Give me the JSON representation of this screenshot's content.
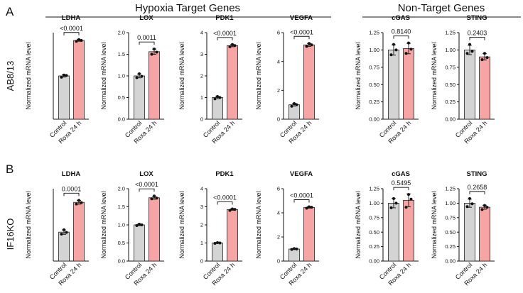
{
  "figure": {
    "panel_letters": [
      "A",
      "B"
    ],
    "group_titles": [
      "Hypoxia Target Genes",
      "Non-Target Genes"
    ],
    "row_labels": [
      "AB8/13",
      "IF16KO"
    ]
  },
  "colors": {
    "control": "#d4d4d4",
    "treatment": "#f7a4a4",
    "edge": "#222222",
    "dot": "#111111"
  },
  "chart_data": [
    {
      "type": "bar",
      "panel": "A",
      "title": "LDHA",
      "categories": [
        "Control",
        "Roxa 24 h"
      ],
      "values": [
        1.0,
        1.82
      ],
      "points": [
        [
          0.97,
          1.02,
          1.01
        ],
        [
          1.8,
          1.84,
          1.82
        ]
      ],
      "ylabel": "Normalized mRNA level",
      "ylim": [
        0,
        2.0
      ],
      "ticks": [],
      "pvalue": "<0.0001"
    },
    {
      "type": "bar",
      "panel": "A",
      "title": "LOX",
      "categories": [
        "Control",
        "Roxa 24 h"
      ],
      "values": [
        1.0,
        1.56
      ],
      "points": [
        [
          0.96,
          1.05,
          0.99
        ],
        [
          1.5,
          1.62,
          1.55
        ]
      ],
      "ylabel": "Normalized mRNA level",
      "ylim": [
        0,
        2.0
      ],
      "ticks": [
        "0.0",
        "0.5",
        "1.0",
        "1.5",
        "2.0"
      ],
      "pvalue": "0.0011"
    },
    {
      "type": "bar",
      "panel": "A",
      "title": "PDK1",
      "categories": [
        "Control",
        "Roxa 24 h"
      ],
      "values": [
        1.0,
        3.4
      ],
      "points": [
        [
          0.94,
          1.05,
          1.0
        ],
        [
          3.35,
          3.45,
          3.4
        ]
      ],
      "ylabel": "Normalized mRNA level",
      "ylim": [
        0,
        4
      ],
      "ticks": [
        "0",
        "1",
        "2",
        "3",
        "4"
      ],
      "pvalue": "<0.0001"
    },
    {
      "type": "bar",
      "panel": "A",
      "title": "VEGFA",
      "categories": [
        "Control",
        "Roxa 24 h"
      ],
      "values": [
        1.0,
        5.15
      ],
      "points": [
        [
          0.9,
          1.08,
          1.0
        ],
        [
          5.05,
          5.25,
          5.15
        ]
      ],
      "ylabel": "Normalized mRNA level",
      "ylim": [
        0,
        6
      ],
      "ticks": [
        "0",
        "2",
        "4",
        "6"
      ],
      "pvalue": "<0.0001"
    },
    {
      "type": "bar",
      "panel": "A",
      "title": "cGAS",
      "categories": [
        "Control",
        "Roxa 24 h"
      ],
      "values": [
        1.0,
        1.02
      ],
      "points": [
        [
          0.93,
          1.08,
          1.0
        ],
        [
          0.95,
          1.1,
          1.01
        ]
      ],
      "ylabel": "Normalized mRNA level",
      "ylim": [
        0,
        1.25
      ],
      "ticks": [
        "0.00",
        "0.25",
        "0.50",
        "0.75",
        "1.00",
        "1.25"
      ],
      "pvalue": "0.8140"
    },
    {
      "type": "bar",
      "panel": "A",
      "title": "STING",
      "categories": [
        "Control",
        "Roxa 24 h"
      ],
      "values": [
        1.0,
        0.9
      ],
      "points": [
        [
          0.95,
          1.08,
          0.98
        ],
        [
          0.86,
          0.95,
          0.89
        ]
      ],
      "ylabel": "Normalized mRNA level",
      "ylim": [
        0,
        1.25
      ],
      "ticks": [
        "0.00",
        "0.25",
        "0.50",
        "0.75",
        "1.00",
        "1.25"
      ],
      "pvalue": "0.2403"
    },
    {
      "type": "bar",
      "panel": "B",
      "title": "LDHA",
      "categories": [
        "Control",
        "Roxa 24 h"
      ],
      "values": [
        1.0,
        2.03
      ],
      "points": [
        [
          0.93,
          1.08,
          0.99
        ],
        [
          1.97,
          2.1,
          2.02
        ]
      ],
      "ylabel": "Normalized mRNA level",
      "ylim": [
        0,
        2.5
      ],
      "ticks": [],
      "pvalue": "0.0001"
    },
    {
      "type": "bar",
      "panel": "B",
      "title": "LOX",
      "categories": [
        "Control",
        "Roxa 24 h"
      ],
      "values": [
        1.0,
        1.75
      ],
      "points": [
        [
          0.98,
          1.02,
          1.0
        ],
        [
          1.72,
          1.8,
          1.74
        ]
      ],
      "ylabel": "Normalized mRNA level",
      "ylim": [
        0,
        2.0
      ],
      "ticks": [
        "0.0",
        "0.5",
        "1.0",
        "1.5",
        "2.0"
      ],
      "pvalue": "<0.0001"
    },
    {
      "type": "bar",
      "panel": "B",
      "title": "PDK1",
      "categories": [
        "Control",
        "Roxa 24 h"
      ],
      "values": [
        1.0,
        2.85
      ],
      "points": [
        [
          0.98,
          1.02,
          1.0
        ],
        [
          2.8,
          2.88,
          2.86
        ]
      ],
      "ylabel": "Normalized mRNA level",
      "ylim": [
        0,
        4
      ],
      "ticks": [
        "0",
        "1",
        "2",
        "3",
        "4"
      ],
      "pvalue": "<0.0001"
    },
    {
      "type": "bar",
      "panel": "B",
      "title": "VEGFA",
      "categories": [
        "Control",
        "Roxa 24 h"
      ],
      "values": [
        1.0,
        4.45
      ],
      "points": [
        [
          0.96,
          1.04,
          1.0
        ],
        [
          4.38,
          4.5,
          4.46
        ]
      ],
      "ylabel": "Normalized mRNA level",
      "ylim": [
        0,
        6
      ],
      "ticks": [
        "0",
        "2",
        "4",
        "6"
      ],
      "pvalue": "<0.0001"
    },
    {
      "type": "bar",
      "panel": "B",
      "title": "cGAS",
      "categories": [
        "Control",
        "Roxa 24 h"
      ],
      "values": [
        1.0,
        1.05
      ],
      "points": [
        [
          0.92,
          1.08,
          1.0
        ],
        [
          0.93,
          1.15,
          1.07
        ]
      ],
      "ylabel": "Normalized mRNA level",
      "ylim": [
        0,
        1.25
      ],
      "ticks": [
        "0.00",
        "0.25",
        "0.50",
        "0.75",
        "1.00",
        "1.25"
      ],
      "pvalue": "0.5495"
    },
    {
      "type": "bar",
      "panel": "B",
      "title": "STING",
      "categories": [
        "Control",
        "Roxa 24 h"
      ],
      "values": [
        1.0,
        0.93
      ],
      "points": [
        [
          0.94,
          1.08,
          0.99
        ],
        [
          0.89,
          0.96,
          0.93
        ]
      ],
      "ylabel": "Normalized mRNA level",
      "ylim": [
        0,
        1.25
      ],
      "ticks": [
        "0.00",
        "0.25",
        "0.50",
        "0.75",
        "1.00",
        "1.25"
      ],
      "pvalue": "0.2658"
    }
  ]
}
